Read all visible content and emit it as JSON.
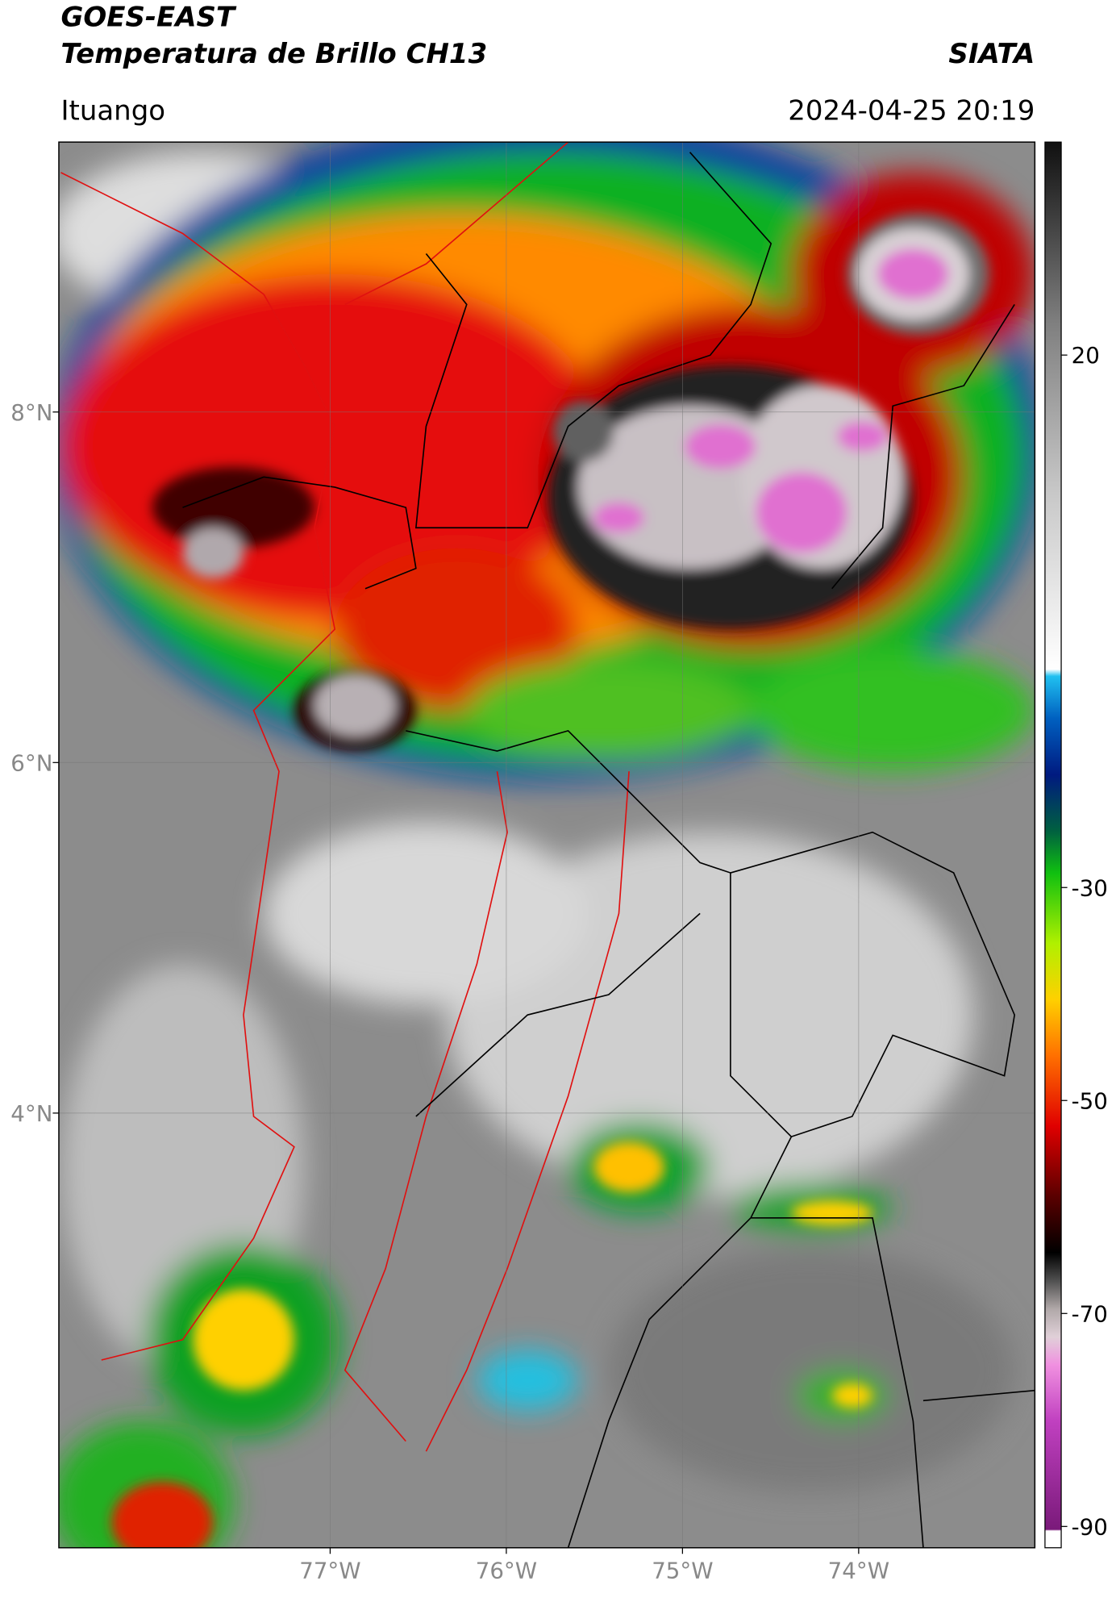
{
  "header": {
    "title_line1": "GOES-EAST",
    "title_line2": "Temperatura de Brillo CH13",
    "source": "SIATA",
    "location": "Ituango",
    "datetime": "2024-04-25 20:19"
  },
  "map": {
    "xlim": [
      -78.54,
      -73.0
    ],
    "ylim": [
      1.52,
      9.54
    ],
    "xticks": [
      {
        "value": -77,
        "label": "77°W"
      },
      {
        "value": -76,
        "label": "76°W"
      },
      {
        "value": -75,
        "label": "75°W"
      },
      {
        "value": -74,
        "label": "74°W"
      }
    ],
    "yticks": [
      {
        "value": 8,
        "label": "8°N"
      },
      {
        "value": 6,
        "label": "6°N"
      },
      {
        "value": 4,
        "label": "4°N"
      }
    ],
    "grid": true
  },
  "colorbar": {
    "lim": [
      -92,
      40
    ],
    "ticks": [
      20,
      -30,
      -50,
      -70,
      -90
    ]
  }
}
